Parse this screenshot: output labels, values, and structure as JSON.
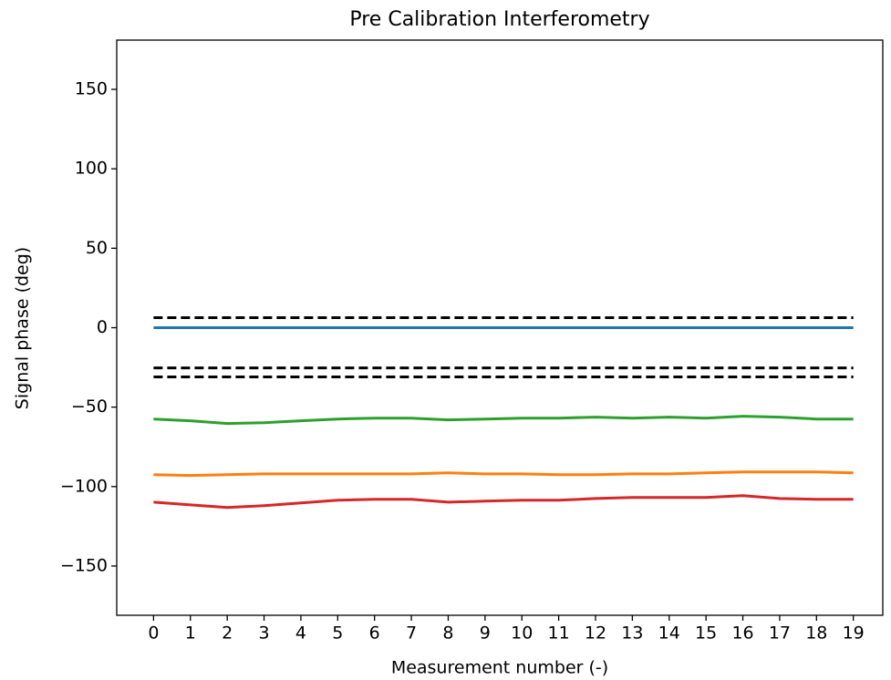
{
  "chart_data": {
    "type": "line",
    "title": "Pre Calibration Interferometry",
    "x_label": "Measurement number (-)",
    "y_label": "Signal phase (deg)",
    "x": [
      0,
      1,
      2,
      3,
      4,
      5,
      6,
      7,
      8,
      9,
      10,
      11,
      12,
      13,
      14,
      15,
      16,
      17,
      18,
      19
    ],
    "xlim": [
      -1,
      19.8
    ],
    "xticks": [
      0,
      1,
      2,
      3,
      4,
      5,
      6,
      7,
      8,
      9,
      10,
      11,
      12,
      13,
      14,
      15,
      16,
      17,
      18,
      19
    ],
    "ylim": [
      -181,
      181
    ],
    "yticks": [
      {
        "value": -150,
        "label": "−150"
      },
      {
        "value": -100,
        "label": "−100"
      },
      {
        "value": -50,
        "label": "−50"
      },
      0,
      50,
      100,
      150
    ],
    "series": [
      {
        "color": "#1f77b4",
        "values": [
          0,
          0,
          0,
          0,
          0,
          0,
          0,
          0,
          0,
          0,
          0,
          0,
          0,
          0,
          0,
          0,
          0,
          0,
          0,
          0
        ]
      },
      {
        "color": "#ff7f0e",
        "values": [
          -92.5,
          -93,
          -92.5,
          -92,
          -92,
          -92,
          -92,
          -92,
          -91.4,
          -92,
          -92,
          -92.5,
          -92.5,
          -92,
          -92,
          -91.4,
          -90.8,
          -90.8,
          -90.8,
          -91.4
        ]
      },
      {
        "color": "#2ca02c",
        "values": [
          -57.5,
          -58.6,
          -60.3,
          -59.8,
          -58.6,
          -57.5,
          -56.9,
          -56.9,
          -58,
          -57.5,
          -56.9,
          -56.9,
          -56.3,
          -56.9,
          -56.3,
          -56.9,
          -55.7,
          -56.3,
          -57.5,
          -57.5
        ]
      },
      {
        "color": "#d62728",
        "values": [
          -109.8,
          -111.5,
          -113.2,
          -112,
          -110.3,
          -108.6,
          -108,
          -108,
          -109.8,
          -109.2,
          -108.6,
          -108.6,
          -107.5,
          -106.9,
          -106.9,
          -106.9,
          -105.7,
          -107.5,
          -108,
          -108
        ]
      }
    ],
    "hlines": [
      {
        "value": 6.3,
        "color": "#000000"
      },
      {
        "value": -25.3,
        "color": "#000000"
      },
      {
        "value": -31,
        "color": "#000000"
      }
    ]
  }
}
